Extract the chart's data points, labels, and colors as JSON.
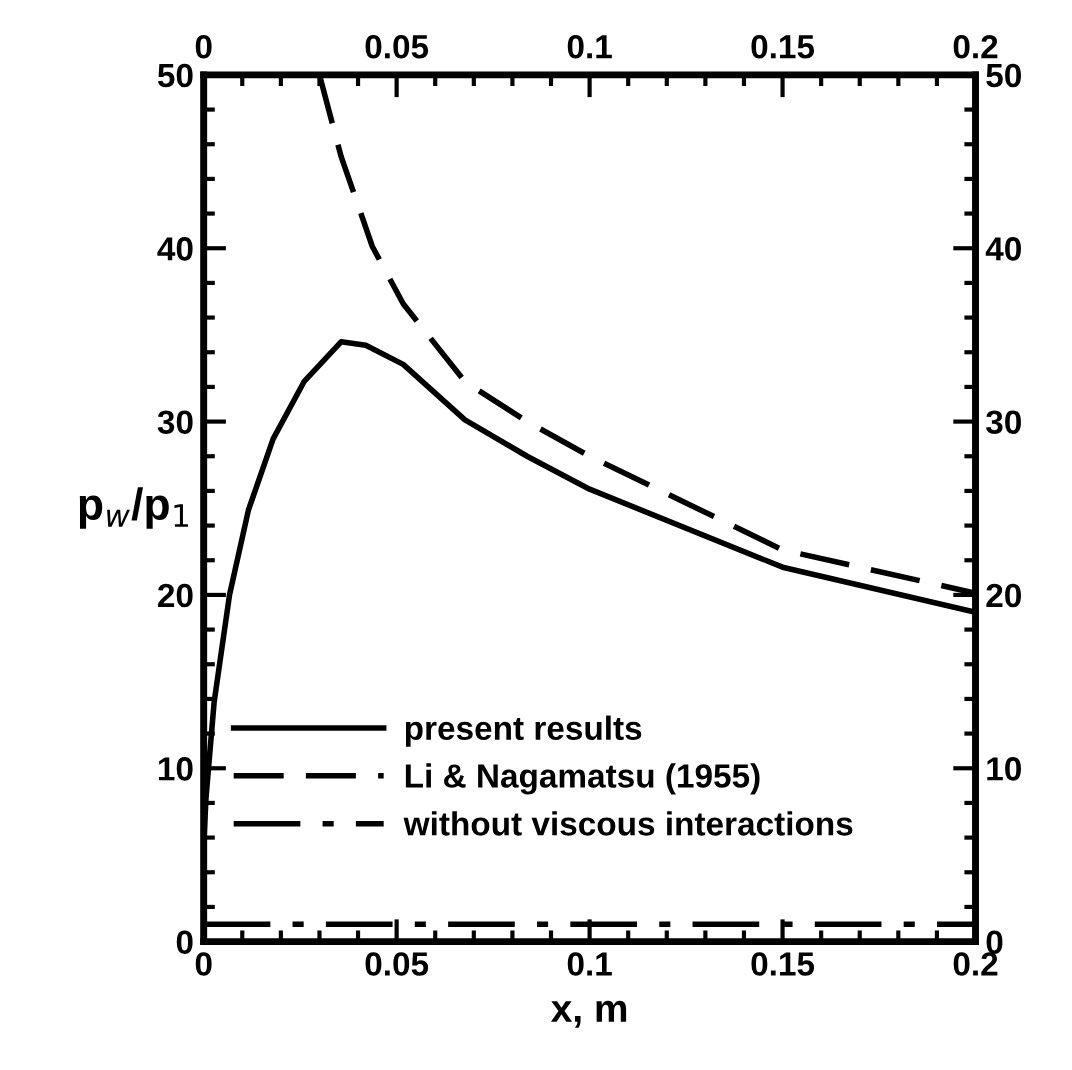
{
  "chart_data": {
    "type": "line",
    "xlabel": "x, m",
    "ylabel": "p$_{w}$/p$_{1}$",
    "xlim": [
      0,
      0.2
    ],
    "xticks": [
      0,
      0.05,
      0.1,
      0.15,
      0.2
    ],
    "ylim": [
      0,
      50
    ],
    "yticks": [
      0,
      10,
      20,
      30,
      40,
      50
    ],
    "x2lim": [
      0,
      0.2
    ],
    "x2ticks": [
      0,
      0.05,
      0.1,
      0.15,
      0.2
    ],
    "y2lim": [
      0,
      50
    ],
    "y2ticks": [
      0,
      10,
      20,
      30,
      40,
      50
    ],
    "grid": false,
    "legend": "bottom",
    "marker": "none",
    "series": [
      {
        "name": "present results",
        "color": "#000000",
        "line_style": "solid",
        "x": [
          0,
          0.0006,
          0.0027,
          0.0067,
          0.0116,
          0.018,
          0.026,
          0.0356,
          0.042,
          0.0517,
          0.0677,
          0.0838,
          0.1,
          0.15,
          0.2
        ],
        "values": [
          5.5,
          8.3,
          13.8,
          20,
          24.9,
          29,
          32.3,
          34.6,
          34.4,
          33.3,
          30.1,
          28.0,
          26.1,
          21.6,
          19.0
        ]
      },
      {
        "name": "Li & Nagamatsu (1955)",
        "color": "#000000",
        "line_style": "dashed",
        "x": [
          0.03,
          0.0356,
          0.0437,
          0.0517,
          0.0677,
          0.0838,
          0.1,
          0.15,
          0.2
        ],
        "values": [
          50,
          45.3,
          40.1,
          36.8,
          32.3,
          30.0,
          28.0,
          22.6,
          20.1
        ]
      },
      {
        "name": "without viscous interactions",
        "color": "#000000",
        "line_style": "dashdot",
        "x": [
          0,
          0.2
        ],
        "values": [
          1.0,
          1.0
        ]
      }
    ]
  }
}
